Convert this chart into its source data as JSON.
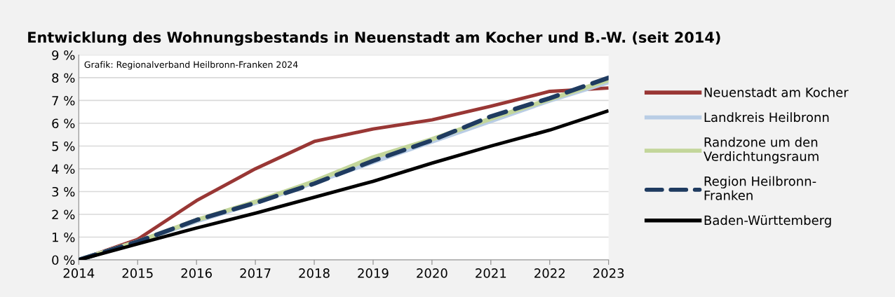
{
  "chart_data": {
    "type": "line",
    "title": "Entwicklung des Wohnungsbestands in Neuenstadt am Kocher und B.-W. (seit 2014)",
    "annotations": [
      "Grafik: Regionalverband Heilbronn-Franken 2024"
    ],
    "x": [
      2014,
      2015,
      2016,
      2017,
      2018,
      2019,
      2020,
      2021,
      2022,
      2023
    ],
    "xlim": [
      2014,
      2023
    ],
    "xticks": [
      2014,
      2015,
      2016,
      2017,
      2018,
      2019,
      2020,
      2021,
      2022,
      2023
    ],
    "ylim": [
      0,
      9
    ],
    "yticks": [
      {
        "value": 0,
        "label": "0 %"
      },
      {
        "value": 1,
        "label": "1 %"
      },
      {
        "value": 2,
        "label": "2 %"
      },
      {
        "value": 3,
        "label": "3 %"
      },
      {
        "value": 4,
        "label": "4 %"
      },
      {
        "value": 5,
        "label": "5 %"
      },
      {
        "value": 6,
        "label": "6 %"
      },
      {
        "value": 7,
        "label": "7 %"
      },
      {
        "value": 8,
        "label": "8 %"
      },
      {
        "value": 9,
        "label": "9 %"
      }
    ],
    "grid": "y",
    "legend": "right",
    "series": [
      {
        "name": "Neuenstadt am Kocher",
        "color": "#993735",
        "values": [
          0,
          0.9,
          2.6,
          4.0,
          5.2,
          5.75,
          6.15,
          6.75,
          7.4,
          7.55
        ]
      },
      {
        "name": "Landkreis Heilbronn",
        "color": "#b9cde5",
        "values": [
          0,
          0.8,
          1.7,
          2.5,
          3.4,
          4.3,
          5.2,
          6.1,
          7.0,
          7.8
        ]
      },
      {
        "name": "Randzone um den\nVerdichtungsraum",
        "color": "#c3d69b",
        "values": [
          0,
          0.8,
          1.75,
          2.55,
          3.45,
          4.5,
          5.3,
          6.2,
          7.05,
          7.9
        ]
      },
      {
        "name": "Region Heilbronn-\nFranken",
        "color": "#1f3b60",
        "line_style": "dashed",
        "values": [
          0,
          0.8,
          1.75,
          2.5,
          3.35,
          4.35,
          5.25,
          6.3,
          7.1,
          8.0
        ]
      },
      {
        "name": "Baden-Württemberg",
        "color": "#000000",
        "values": [
          0,
          0.7,
          1.4,
          2.05,
          2.75,
          3.45,
          4.25,
          5.0,
          5.7,
          6.55
        ]
      }
    ]
  }
}
